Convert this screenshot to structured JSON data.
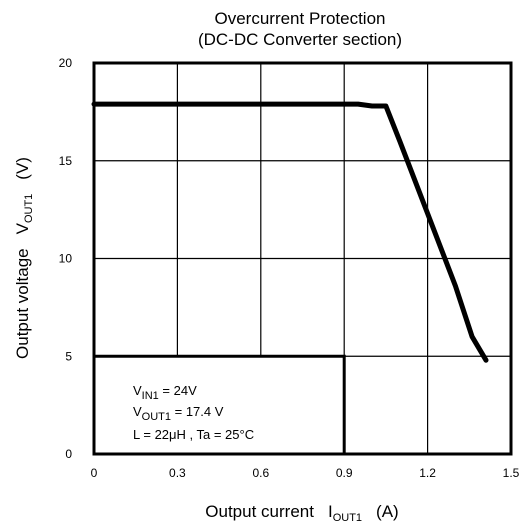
{
  "chart_data": {
    "type": "line",
    "title": "Overcurrent Protection",
    "subtitle": "(DC-DC Converter section)",
    "xlabel": {
      "main": "Output current",
      "symbol": "I",
      "sub": "OUT1",
      "unit": "(A)"
    },
    "ylabel": {
      "main": "Output voltage",
      "symbol": "V",
      "sub": "OUT1",
      "unit": "(V)"
    },
    "xlim": [
      0,
      1.5
    ],
    "ylim": [
      0,
      20
    ],
    "x_ticks": [
      "0",
      "0.3",
      "0.6",
      "0.9",
      "1.2",
      "1.5"
    ],
    "y_ticks": [
      "0",
      "5",
      "10",
      "15",
      "20"
    ],
    "grid": true,
    "series": [
      {
        "x": [
          0,
          0.3,
          0.6,
          0.9,
          0.95,
          1.0,
          1.05,
          1.1,
          1.2,
          1.3,
          1.36,
          1.41
        ],
        "y": [
          17.9,
          17.9,
          17.9,
          17.9,
          17.9,
          17.8,
          17.8,
          16.0,
          12.3,
          8.6,
          6.0,
          4.8
        ]
      }
    ],
    "conditions": [
      {
        "pre": "V",
        "sub": "IN1",
        "post": " = 24V"
      },
      {
        "pre": "V",
        "sub": "OUT1",
        "post": " = 17.4 V"
      },
      {
        "pre": "L = 22μH , Ta = 25°C",
        "sub": "",
        "post": ""
      }
    ],
    "conditions_box_xlim": [
      0,
      0.9
    ],
    "conditions_box_ylim": [
      0,
      5
    ]
  },
  "colors": {
    "line": "#000000",
    "grid": "#000000",
    "frame": "#000000"
  }
}
